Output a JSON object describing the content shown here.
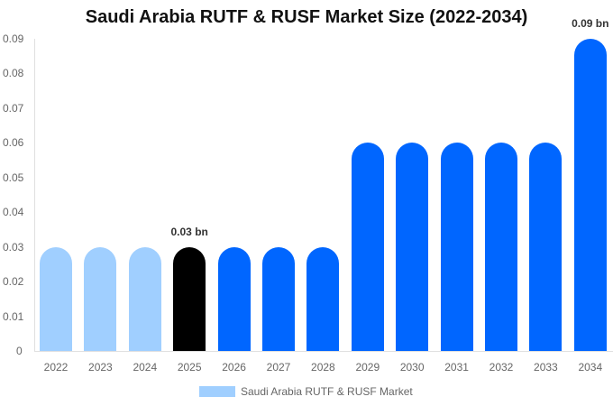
{
  "chart_data": {
    "type": "bar",
    "title": "Saudi Arabia RUTF & RUSF Market Size (2022-2034)",
    "xlabel": "",
    "ylabel": "",
    "ylim": [
      0,
      0.09
    ],
    "yticks": [
      "0",
      "0.01",
      "0.02",
      "0.03",
      "0.04",
      "0.05",
      "0.06",
      "0.07",
      "0.08",
      "0.09"
    ],
    "grid": false,
    "legend_position": "bottom",
    "categories": [
      "2022",
      "2023",
      "2024",
      "2025",
      "2026",
      "2027",
      "2028",
      "2029",
      "2030",
      "2031",
      "2032",
      "2033",
      "2034"
    ],
    "series": [
      {
        "name": "Saudi Arabia RUTF & RUSF Market",
        "values": [
          0.03,
          0.03,
          0.03,
          0.03,
          0.03,
          0.03,
          0.03,
          0.06,
          0.06,
          0.06,
          0.06,
          0.06,
          0.09
        ],
        "colors": [
          "#a0cfff",
          "#a0cfff",
          "#a0cfff",
          "#000000",
          "#0066ff",
          "#0066ff",
          "#0066ff",
          "#0066ff",
          "#0066ff",
          "#0066ff",
          "#0066ff",
          "#0066ff",
          "#0066ff"
        ]
      }
    ],
    "annotations": [
      {
        "category": "2025",
        "text": "0.03 bn"
      },
      {
        "category": "2034",
        "text": "0.09 bn"
      }
    ]
  },
  "legend": {
    "label": "Saudi Arabia RUTF & RUSF Market",
    "color": "#a0cfff"
  }
}
